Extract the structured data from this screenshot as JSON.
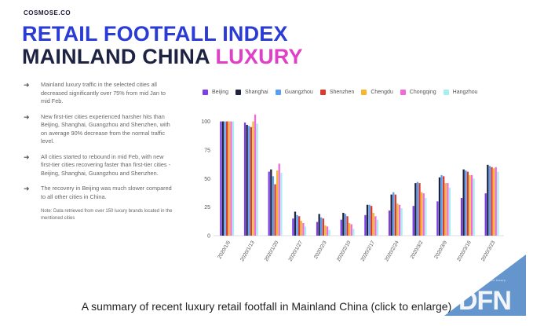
{
  "slide": {
    "brand": "COSMOSE.CO",
    "title_line1": "RETAIL FOOTFALL INDEX",
    "title_line2_prefix": "MAINLAND CHINA ",
    "title_line2_highlight": "LUXURY",
    "bullets": [
      "Mainland luxury traffic in the selected cities all decreased significantly over 75% from mid Jan to mid Feb.",
      "New first-tier cities experienced harsher hits than Beijing, Shanghai, Guangzhou and Shenzhen, with on average 90% decrease from the normal traffic level.",
      "All cities started to rebound in mid Feb, with new first-tier cities recovering faster than first-tier cities - Beijing, Shanghai, Guangzhou and Shenzhen.",
      "The recovery in Beijing was much slower compared to all other cities in China."
    ],
    "bullet_arrow": "➜",
    "note": "Note: Data retrieved from over 150 luxury brands located in the mentioned cities"
  },
  "caption": "A summary of recent luxury retail footfall in Mainland China (click to enlarge)",
  "watermark": {
    "text": "DFN",
    "tagline": "retail intelligence for luxury",
    "color": "#4f86c6"
  },
  "chart_data": {
    "type": "bar",
    "categories": [
      "2020/1/6",
      "2020/1/13",
      "2020/1/20",
      "2020/1/27",
      "2020/2/3",
      "2020/2/10",
      "2020/2/17",
      "2020/2/24",
      "2020/3/2",
      "2020/3/9",
      "2020/3/16",
      "2020/3/23"
    ],
    "series": [
      {
        "name": "Beijing",
        "color": "#7b3fe4",
        "values": [
          100,
          99,
          56,
          15,
          12,
          14,
          18,
          22,
          26,
          30,
          33,
          37
        ]
      },
      {
        "name": "Shanghai",
        "color": "#1d2340",
        "values": [
          100,
          97,
          58,
          21,
          19,
          20,
          27,
          36,
          46,
          51,
          58,
          62
        ]
      },
      {
        "name": "Guangzhou",
        "color": "#5b9df0",
        "values": [
          100,
          96,
          52,
          18,
          16,
          19,
          27,
          38,
          47,
          53,
          57,
          61
        ]
      },
      {
        "name": "Shenzhen",
        "color": "#d83a2e",
        "values": [
          100,
          95,
          45,
          17,
          15,
          17,
          26,
          36,
          46,
          52,
          56,
          60
        ]
      },
      {
        "name": "Chengdu",
        "color": "#f5b731",
        "values": [
          100,
          100,
          57,
          13,
          9,
          11,
          20,
          28,
          38,
          46,
          53,
          59
        ]
      },
      {
        "name": "Chongqing",
        "color": "#f06ad8",
        "values": [
          100,
          106,
          63,
          11,
          8,
          10,
          17,
          27,
          37,
          46,
          53,
          60
        ]
      },
      {
        "name": "Hangzhou",
        "color": "#a6eef0",
        "values": [
          100,
          98,
          55,
          8,
          5,
          6,
          14,
          24,
          33,
          42,
          50,
          56
        ]
      }
    ],
    "yticks": [
      0,
      25,
      50,
      75,
      100
    ],
    "ylim": [
      0,
      110
    ],
    "grid": false,
    "legend_position": "top"
  }
}
